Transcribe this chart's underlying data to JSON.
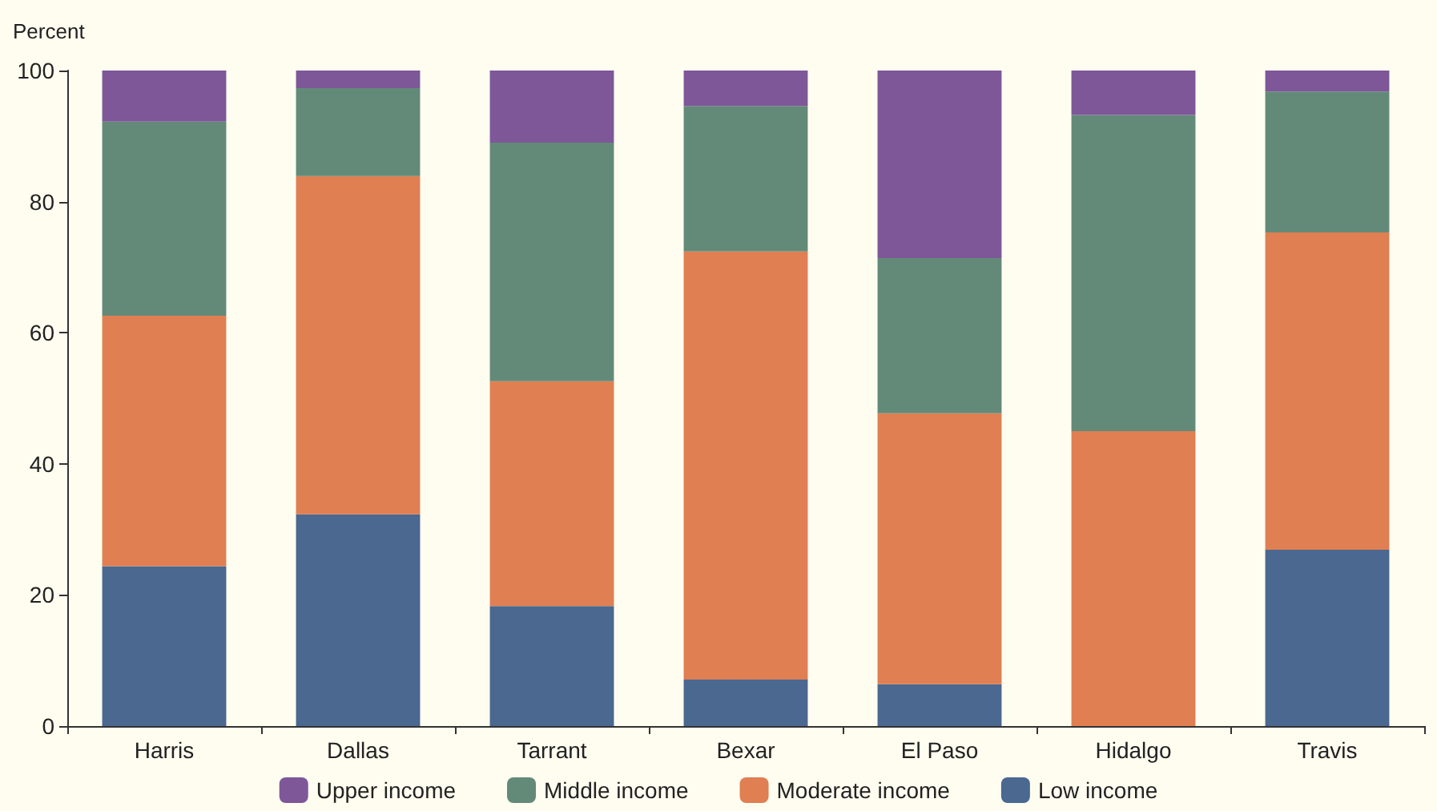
{
  "chart_data": {
    "type": "bar",
    "stacked": true,
    "ylabel": "Percent",
    "categories": [
      "Harris",
      "Dallas",
      "Tarrant",
      "Bexar",
      "El Paso",
      "Hidalgo",
      "Travis"
    ],
    "series": [
      {
        "name": "Low income",
        "color": "#4a6890",
        "values": [
          24.4,
          32.3,
          18.3,
          7.1,
          6.4,
          0,
          26.9
        ]
      },
      {
        "name": "Moderate income",
        "color": "#e07f52",
        "values": [
          38.2,
          51.6,
          34.3,
          65.3,
          41.3,
          45.0,
          48.4
        ]
      },
      {
        "name": "Middle income",
        "color": "#638a79",
        "values": [
          29.6,
          13.4,
          36.4,
          22.2,
          23.7,
          48.2,
          21.5
        ]
      },
      {
        "name": "Upper income",
        "color": "#7e5799",
        "values": [
          7.8,
          2.7,
          11.0,
          5.4,
          28.6,
          6.8,
          3.2
        ]
      }
    ],
    "ylim": [
      0,
      100
    ],
    "yticks": [
      0,
      20,
      40,
      60,
      80,
      100
    ],
    "grid": false,
    "legend": "bottom"
  }
}
